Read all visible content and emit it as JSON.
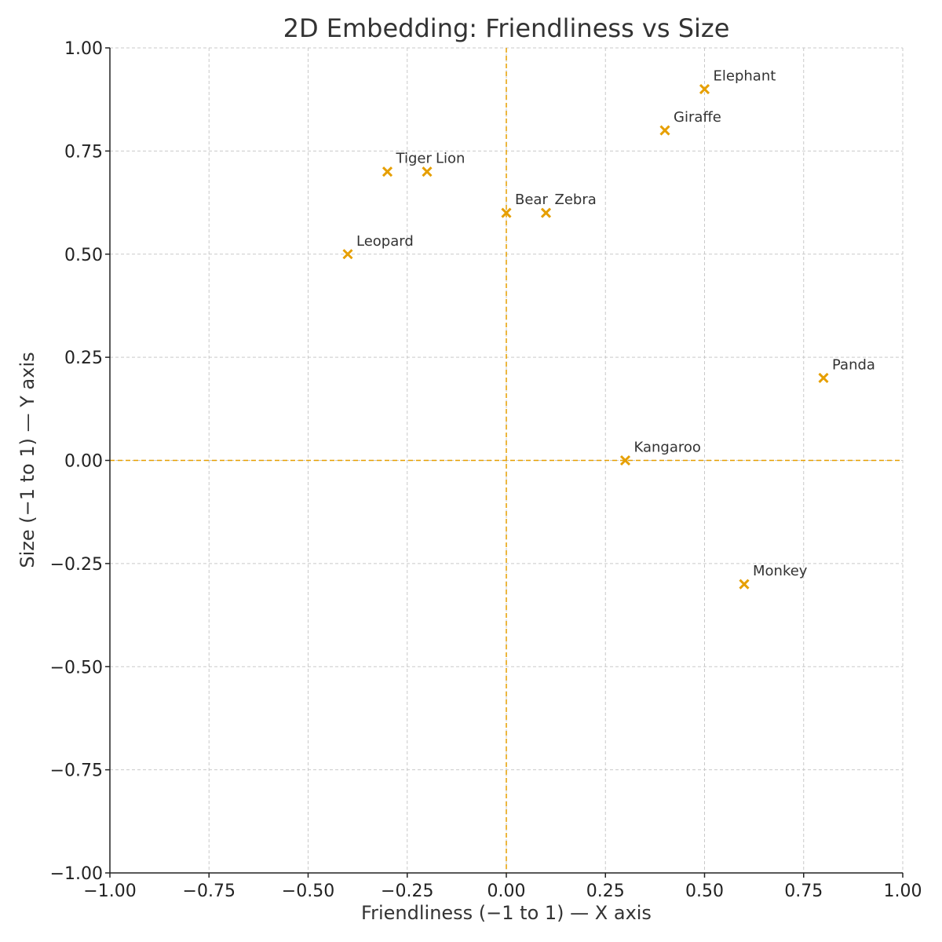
{
  "chart_data": {
    "type": "scatter",
    "title": "2D Embedding: Friendliness vs Size",
    "xlabel": "Friendliness (−1 to 1) — X axis",
    "ylabel": "Size (−1 to 1) — Y axis",
    "xlim": [
      -1,
      1
    ],
    "ylim": [
      -1,
      1
    ],
    "x_ticks": [
      -1,
      -0.75,
      -0.5,
      -0.25,
      0,
      0.25,
      0.5,
      0.75,
      1
    ],
    "y_ticks": [
      -1,
      -0.75,
      -0.5,
      -0.25,
      0,
      0.25,
      0.5,
      0.75,
      1
    ],
    "x_tick_labels": [
      "−1.00",
      "−0.75",
      "−0.50",
      "−0.25",
      "0.00",
      "0.25",
      "0.50",
      "0.75",
      "1.00"
    ],
    "y_tick_labels": [
      "−1.00",
      "−0.75",
      "−0.50",
      "−0.25",
      "0.00",
      "0.25",
      "0.50",
      "0.75",
      "1.00"
    ],
    "grid": true,
    "reference_lines": {
      "x": 0,
      "y": 0
    },
    "marker": "x",
    "marker_color": "#e69f00",
    "points": [
      {
        "label": "Elephant",
        "x": 0.5,
        "y": 0.9
      },
      {
        "label": "Giraffe",
        "x": 0.4,
        "y": 0.8
      },
      {
        "label": "Tiger",
        "x": -0.3,
        "y": 0.7
      },
      {
        "label": "Lion",
        "x": -0.2,
        "y": 0.7
      },
      {
        "label": "Bear",
        "x": 0.0,
        "y": 0.6
      },
      {
        "label": "Zebra",
        "x": 0.1,
        "y": 0.6
      },
      {
        "label": "Leopard",
        "x": -0.4,
        "y": 0.5
      },
      {
        "label": "Panda",
        "x": 0.8,
        "y": 0.2
      },
      {
        "label": "Kangaroo",
        "x": 0.3,
        "y": 0.0
      },
      {
        "label": "Monkey",
        "x": 0.6,
        "y": -0.3
      }
    ]
  }
}
